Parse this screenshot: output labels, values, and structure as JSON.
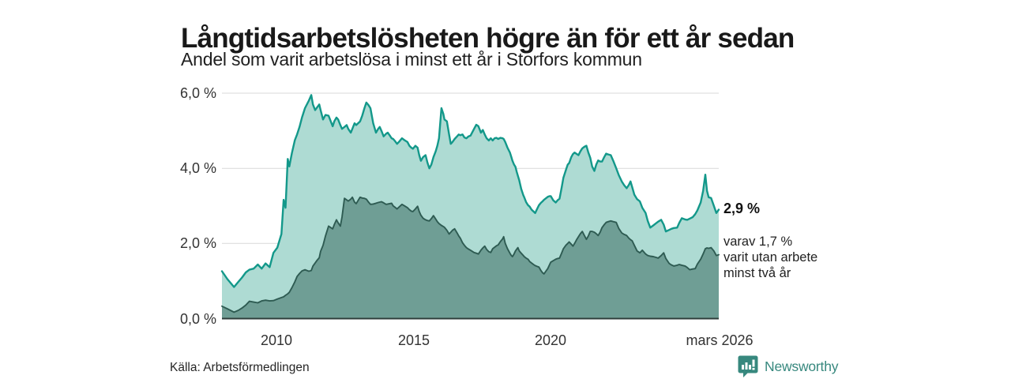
{
  "header": {
    "title": "Långtidsarbetslösheten högre än för ett år sedan",
    "subtitle": "Andel som varit arbetslösa i minst ett år i Storfors kommun"
  },
  "annotations": {
    "value_label": "2,9 %",
    "secondary_lines": [
      "varav 1,7 %",
      "varit utan arbete",
      "minst två år"
    ]
  },
  "footer": {
    "source": "Källa: Arbetsförmedlingen",
    "brand": "Newsworthy"
  },
  "colors": {
    "accent_teal": "#13988a",
    "fill_light": "#aedbd3",
    "line_dark": "#2e5b52",
    "fill_dark": "#6f9e95",
    "gridline": "#d9d9d9",
    "axis_line": "#2f3e3b",
    "brand_teal": "#37887e",
    "text_dark": "#191919"
  },
  "chart_data": {
    "type": "area",
    "title": "Långtidsarbetslösheten högre än för ett år sedan",
    "subtitle": "Andel som varit arbetslösa i minst ett år i Storfors kommun",
    "unit": "percent",
    "grid": "horizontal",
    "xlim": [
      2008.0,
      2026.13
    ],
    "ylim": [
      0,
      6.3
    ],
    "x_ticks": [
      "2010",
      "2015",
      "2020",
      "mars 2026"
    ],
    "x_tick_positions": [
      2010,
      2015,
      2020,
      2026.13
    ],
    "y_ticks": [
      "0,0 %",
      "2,0 %",
      "4,0 %",
      "6,0 %"
    ],
    "y_tick_values": [
      0,
      2,
      4,
      6
    ],
    "series": [
      {
        "name": "Arbetslösa minst ett år",
        "line_color": "#13988a",
        "fill_color": "#aedbd3",
        "end_value": 2.9,
        "end_label": "2,9 %"
      },
      {
        "name": "Varav utan arbete minst två år",
        "line_color": "#2e5b52",
        "fill_color": "#6f9e95",
        "end_value": 1.7,
        "end_label": "varav 1,7 % varit utan arbete minst två år"
      }
    ],
    "points_format": [
      "year_decimal",
      "share_unemployed_min_1yr_pct",
      "share_unemployed_min_2yr_pct"
    ],
    "points": [
      [
        2008.0,
        1.26,
        0.33
      ],
      [
        2008.2,
        1.05,
        0.26
      ],
      [
        2008.44,
        0.84,
        0.17
      ],
      [
        2008.6,
        0.98,
        0.22
      ],
      [
        2008.73,
        1.09,
        0.28
      ],
      [
        2008.87,
        1.23,
        0.36
      ],
      [
        2009.0,
        1.3,
        0.46
      ],
      [
        2009.16,
        1.33,
        0.44
      ],
      [
        2009.31,
        1.44,
        0.42
      ],
      [
        2009.45,
        1.33,
        0.47
      ],
      [
        2009.59,
        1.47,
        0.49
      ],
      [
        2009.74,
        1.37,
        0.47
      ],
      [
        2009.88,
        1.75,
        0.48
      ],
      [
        2010.02,
        1.89,
        0.52
      ],
      [
        2010.17,
        2.25,
        0.56
      ],
      [
        2010.25,
        3.16,
        0.58
      ],
      [
        2010.32,
        2.95,
        0.62
      ],
      [
        2010.4,
        4.25,
        0.66
      ],
      [
        2010.46,
        4.05,
        0.7
      ],
      [
        2010.55,
        4.4,
        0.82
      ],
      [
        2010.66,
        4.75,
        0.98
      ],
      [
        2010.74,
        4.9,
        1.12
      ],
      [
        2010.83,
        5.1,
        1.2
      ],
      [
        2010.92,
        5.35,
        1.27
      ],
      [
        2011.03,
        5.6,
        1.3
      ],
      [
        2011.17,
        5.8,
        1.26
      ],
      [
        2011.26,
        5.95,
        1.28
      ],
      [
        2011.32,
        5.7,
        1.4
      ],
      [
        2011.4,
        5.55,
        1.48
      ],
      [
        2011.47,
        5.62,
        1.55
      ],
      [
        2011.55,
        5.7,
        1.62
      ],
      [
        2011.6,
        5.55,
        1.79
      ],
      [
        2011.69,
        5.3,
        1.95
      ],
      [
        2011.78,
        5.42,
        2.2
      ],
      [
        2011.89,
        5.4,
        2.46
      ],
      [
        2012.04,
        5.12,
        2.39
      ],
      [
        2012.1,
        5.25,
        2.5
      ],
      [
        2012.18,
        5.35,
        2.63
      ],
      [
        2012.24,
        5.3,
        2.55
      ],
      [
        2012.32,
        5.15,
        2.46
      ],
      [
        2012.38,
        5.05,
        2.7
      ],
      [
        2012.47,
        5.1,
        3.2
      ],
      [
        2012.55,
        5.15,
        3.16
      ],
      [
        2012.61,
        5.05,
        3.13
      ],
      [
        2012.7,
        4.95,
        3.18
      ],
      [
        2012.76,
        5.05,
        3.23
      ],
      [
        2012.84,
        5.2,
        3.1
      ],
      [
        2012.9,
        5.15,
        3.06
      ],
      [
        2013.04,
        5.25,
        3.23
      ],
      [
        2013.12,
        5.4,
        3.21
      ],
      [
        2013.2,
        5.6,
        3.2
      ],
      [
        2013.27,
        5.75,
        3.18
      ],
      [
        2013.35,
        5.68,
        3.1
      ],
      [
        2013.42,
        5.6,
        3.04
      ],
      [
        2013.52,
        5.2,
        3.05
      ],
      [
        2013.62,
        4.95,
        3.07
      ],
      [
        2013.7,
        5.05,
        3.09
      ],
      [
        2013.76,
        5.1,
        3.1
      ],
      [
        2013.82,
        5.0,
        3.11
      ],
      [
        2013.9,
        4.85,
        3.08
      ],
      [
        2013.99,
        4.92,
        3.04
      ],
      [
        2014.05,
        4.95,
        3.05
      ],
      [
        2014.12,
        4.88,
        3.06
      ],
      [
        2014.19,
        4.8,
        3.07
      ],
      [
        2014.25,
        4.78,
        3.0
      ],
      [
        2014.32,
        4.72,
        2.96
      ],
      [
        2014.39,
        4.65,
        2.92
      ],
      [
        2014.48,
        4.72,
        2.98
      ],
      [
        2014.57,
        4.8,
        3.04
      ],
      [
        2014.66,
        4.75,
        3.0
      ],
      [
        2014.77,
        4.7,
        2.95
      ],
      [
        2014.84,
        4.6,
        2.9
      ],
      [
        2014.91,
        4.55,
        2.86
      ],
      [
        2014.97,
        4.52,
        2.85
      ],
      [
        2015.06,
        4.6,
        2.92
      ],
      [
        2015.14,
        4.55,
        2.99
      ],
      [
        2015.2,
        4.35,
        2.85
      ],
      [
        2015.26,
        4.2,
        2.75
      ],
      [
        2015.34,
        4.3,
        2.67
      ],
      [
        2015.43,
        4.35,
        2.63
      ],
      [
        2015.5,
        4.15,
        2.61
      ],
      [
        2015.57,
        4.0,
        2.6
      ],
      [
        2015.64,
        4.1,
        2.66
      ],
      [
        2015.72,
        4.3,
        2.74
      ],
      [
        2015.8,
        4.45,
        2.65
      ],
      [
        2015.86,
        4.6,
        2.58
      ],
      [
        2015.92,
        4.8,
        2.53
      ],
      [
        2016.01,
        5.6,
        2.48
      ],
      [
        2016.08,
        5.45,
        2.45
      ],
      [
        2016.12,
        5.3,
        2.43
      ],
      [
        2016.21,
        5.25,
        2.35
      ],
      [
        2016.29,
        4.9,
        2.25
      ],
      [
        2016.35,
        4.65,
        2.3
      ],
      [
        2016.41,
        4.7,
        2.35
      ],
      [
        2016.49,
        4.78,
        2.39
      ],
      [
        2016.58,
        4.85,
        2.28
      ],
      [
        2016.64,
        4.9,
        2.2
      ],
      [
        2016.7,
        4.88,
        2.14
      ],
      [
        2016.78,
        4.9,
        2.02
      ],
      [
        2016.85,
        4.82,
        1.95
      ],
      [
        2016.92,
        4.8,
        1.89
      ],
      [
        2017.0,
        4.85,
        1.85
      ],
      [
        2017.07,
        4.87,
        1.82
      ],
      [
        2017.2,
        5.05,
        1.76
      ],
      [
        2017.28,
        5.16,
        1.74
      ],
      [
        2017.36,
        5.12,
        1.72
      ],
      [
        2017.45,
        4.95,
        1.82
      ],
      [
        2017.52,
        5.02,
        1.88
      ],
      [
        2017.59,
        4.9,
        1.93
      ],
      [
        2017.66,
        4.8,
        1.84
      ],
      [
        2017.74,
        4.74,
        1.78
      ],
      [
        2017.81,
        4.8,
        1.76
      ],
      [
        2017.88,
        4.74,
        1.86
      ],
      [
        2017.95,
        4.8,
        1.9
      ],
      [
        2018.02,
        4.81,
        1.94
      ],
      [
        2018.08,
        4.78,
        1.96
      ],
      [
        2018.16,
        4.81,
        2.05
      ],
      [
        2018.24,
        4.8,
        2.12
      ],
      [
        2018.28,
        4.78,
        2.18
      ],
      [
        2018.34,
        4.7,
        2.0
      ],
      [
        2018.42,
        4.55,
        1.86
      ],
      [
        2018.51,
        4.42,
        1.74
      ],
      [
        2018.56,
        4.3,
        1.68
      ],
      [
        2018.6,
        4.2,
        1.65
      ],
      [
        2018.66,
        4.1,
        1.72
      ],
      [
        2018.71,
        4.04,
        1.8
      ],
      [
        2018.76,
        3.9,
        1.85
      ],
      [
        2018.8,
        3.8,
        1.89
      ],
      [
        2018.85,
        3.68,
        1.8
      ],
      [
        2018.92,
        3.45,
        1.74
      ],
      [
        2019.0,
        3.28,
        1.68
      ],
      [
        2019.03,
        3.23,
        1.65
      ],
      [
        2019.1,
        3.1,
        1.61
      ],
      [
        2019.17,
        3.02,
        1.58
      ],
      [
        2019.23,
        2.98,
        1.52
      ],
      [
        2019.3,
        2.9,
        1.48
      ],
      [
        2019.37,
        2.85,
        1.44
      ],
      [
        2019.43,
        2.81,
        1.41
      ],
      [
        2019.5,
        2.92,
        1.39
      ],
      [
        2019.57,
        3.02,
        1.37
      ],
      [
        2019.64,
        3.08,
        1.28
      ],
      [
        2019.7,
        3.12,
        1.22
      ],
      [
        2019.75,
        3.16,
        1.19
      ],
      [
        2019.82,
        3.2,
        1.26
      ],
      [
        2019.89,
        3.24,
        1.33
      ],
      [
        2019.96,
        3.26,
        1.44
      ],
      [
        2020.0,
        3.26,
        1.5
      ],
      [
        2020.09,
        3.15,
        1.54
      ],
      [
        2020.18,
        3.09,
        1.58
      ],
      [
        2020.25,
        3.15,
        1.6
      ],
      [
        2020.32,
        3.19,
        1.61
      ],
      [
        2020.4,
        3.5,
        1.75
      ],
      [
        2020.46,
        3.75,
        1.86
      ],
      [
        2020.55,
        3.95,
        1.95
      ],
      [
        2020.62,
        4.1,
        2.0
      ],
      [
        2020.67,
        4.14,
        2.04
      ],
      [
        2020.75,
        4.3,
        1.98
      ],
      [
        2020.81,
        4.38,
        1.93
      ],
      [
        2020.87,
        4.42,
        2.0
      ],
      [
        2020.95,
        4.38,
        2.11
      ],
      [
        2021.01,
        4.35,
        2.18
      ],
      [
        2021.08,
        4.45,
        2.26
      ],
      [
        2021.15,
        4.53,
        2.32
      ],
      [
        2021.22,
        4.57,
        2.22
      ],
      [
        2021.3,
        4.6,
        2.11
      ],
      [
        2021.37,
        4.42,
        2.2
      ],
      [
        2021.44,
        4.28,
        2.32
      ],
      [
        2021.51,
        4.05,
        2.32
      ],
      [
        2021.59,
        3.93,
        2.3
      ],
      [
        2021.66,
        4.1,
        2.26
      ],
      [
        2021.73,
        4.21,
        2.21
      ],
      [
        2021.8,
        4.18,
        2.3
      ],
      [
        2021.87,
        4.18,
        2.42
      ],
      [
        2021.95,
        4.3,
        2.5
      ],
      [
        2022.02,
        4.39,
        2.56
      ],
      [
        2022.1,
        4.37,
        2.58
      ],
      [
        2022.19,
        4.35,
        2.6
      ],
      [
        2022.28,
        4.2,
        2.58
      ],
      [
        2022.39,
        4.0,
        2.56
      ],
      [
        2022.48,
        3.82,
        2.4
      ],
      [
        2022.59,
        3.65,
        2.28
      ],
      [
        2022.68,
        3.55,
        2.24
      ],
      [
        2022.77,
        3.47,
        2.21
      ],
      [
        2022.85,
        3.56,
        2.14
      ],
      [
        2022.91,
        3.65,
        2.1
      ],
      [
        2022.97,
        3.5,
        2.07
      ],
      [
        2023.05,
        3.3,
        1.95
      ],
      [
        2023.15,
        3.18,
        1.8
      ],
      [
        2023.25,
        3.12,
        1.75
      ],
      [
        2023.34,
        2.95,
        1.82
      ],
      [
        2023.46,
        2.81,
        1.72
      ],
      [
        2023.54,
        2.6,
        1.68
      ],
      [
        2023.63,
        2.42,
        1.66
      ],
      [
        2023.74,
        2.48,
        1.65
      ],
      [
        2023.83,
        2.53,
        1.63
      ],
      [
        2023.92,
        2.58,
        1.61
      ],
      [
        2024.03,
        2.63,
        1.68
      ],
      [
        2024.12,
        2.5,
        1.75
      ],
      [
        2024.2,
        2.32,
        1.6
      ],
      [
        2024.32,
        2.36,
        1.47
      ],
      [
        2024.4,
        2.39,
        1.43
      ],
      [
        2024.49,
        2.41,
        1.4
      ],
      [
        2024.61,
        2.42,
        1.42
      ],
      [
        2024.69,
        2.55,
        1.44
      ],
      [
        2024.78,
        2.67,
        1.42
      ],
      [
        2024.9,
        2.64,
        1.4
      ],
      [
        2024.98,
        2.63,
        1.36
      ],
      [
        2025.07,
        2.66,
        1.3
      ],
      [
        2025.18,
        2.7,
        1.32
      ],
      [
        2025.27,
        2.78,
        1.33
      ],
      [
        2025.35,
        2.88,
        1.45
      ],
      [
        2025.47,
        3.09,
        1.58
      ],
      [
        2025.56,
        3.4,
        1.72
      ],
      [
        2025.64,
        3.83,
        1.86
      ],
      [
        2025.7,
        3.4,
        1.88
      ],
      [
        2025.76,
        3.23,
        1.87
      ],
      [
        2025.85,
        3.21,
        1.89
      ],
      [
        2025.95,
        3.0,
        1.8
      ],
      [
        2026.04,
        2.81,
        1.68
      ],
      [
        2026.13,
        2.9,
        1.7
      ]
    ]
  }
}
